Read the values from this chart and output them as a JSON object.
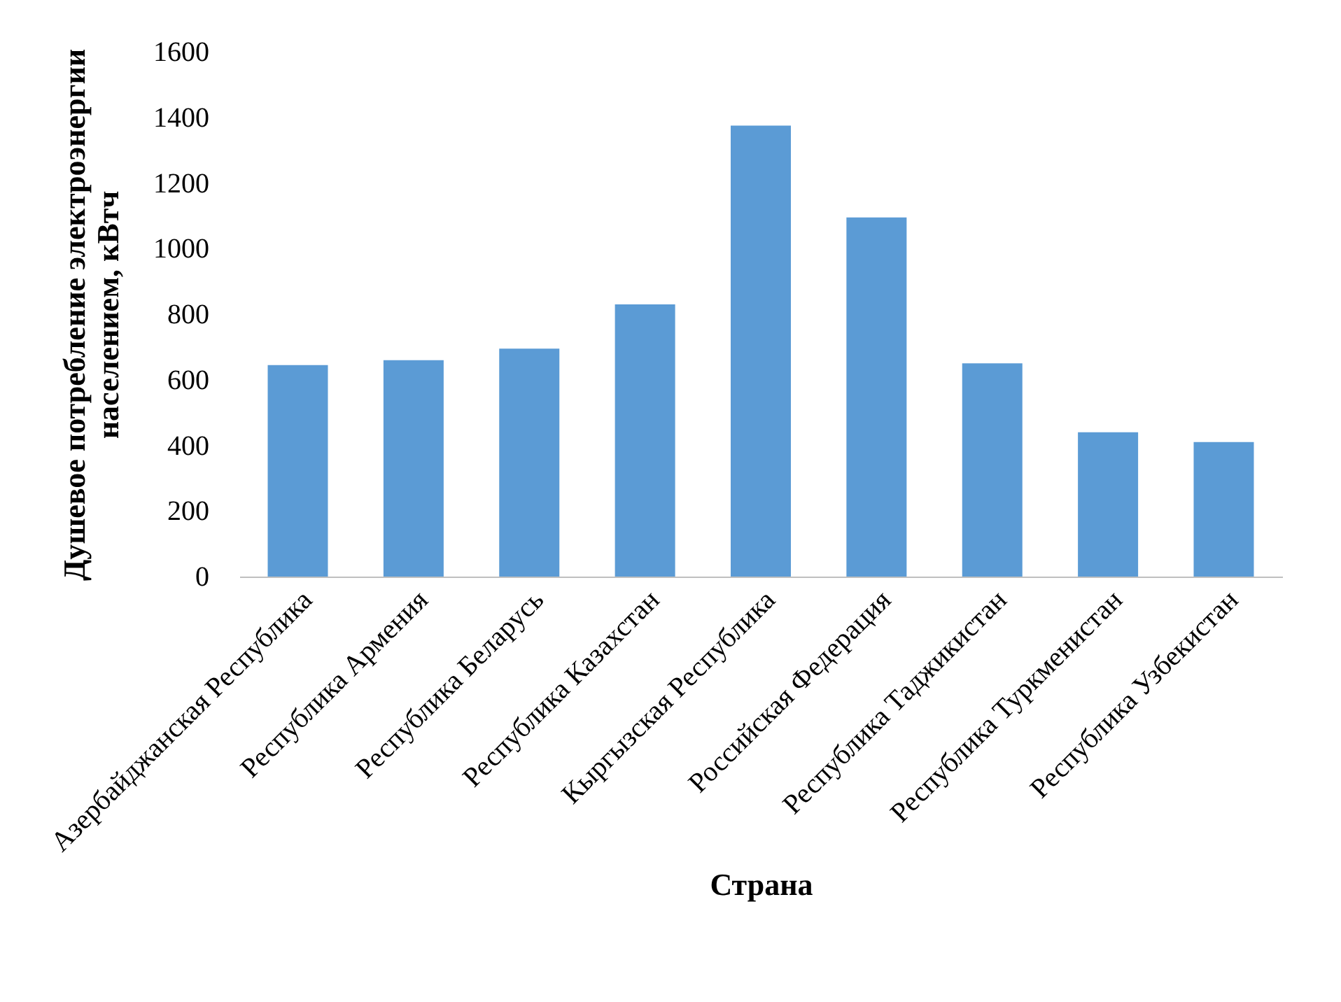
{
  "chart_data": {
    "type": "bar",
    "xlabel": "Страна",
    "ylabel": "Душевое потребление электроэнергии\nнаселением, кВтч",
    "categories": [
      "Азербайджанская Республика",
      "Республика Армения",
      "Республика Беларусь",
      "Республика Казахстан",
      "Кыргызская Республика",
      "Российская Федерация",
      "Республика Таджикистан",
      "Республика Туркменистан",
      "Республика Узбекистан"
    ],
    "values": [
      645,
      660,
      695,
      830,
      1375,
      1095,
      650,
      440,
      410
    ],
    "color": "#5b9bd5",
    "ylim": [
      0,
      1600
    ],
    "yticks": [
      0,
      200,
      400,
      600,
      800,
      1000,
      1200,
      1400,
      1600
    ],
    "grid": false
  }
}
